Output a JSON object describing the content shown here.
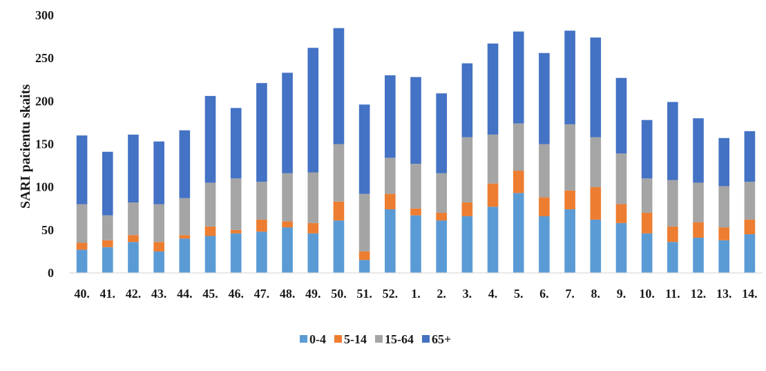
{
  "chart_data": {
    "type": "bar",
    "stacked": true,
    "title": "",
    "xlabel": "",
    "ylabel": "SARI pacientu skaits",
    "ylim": [
      0,
      300
    ],
    "yticks": [
      0,
      50,
      100,
      150,
      200,
      250,
      300
    ],
    "grid": false,
    "legend_position": "bottom",
    "categories": [
      "40.",
      "41.",
      "42.",
      "43.",
      "44.",
      "45.",
      "46.",
      "47.",
      "48.",
      "49.",
      "50.",
      "51.",
      "52.",
      "1.",
      "2.",
      "3.",
      "4.",
      "5.",
      "6.",
      "7.",
      "8.",
      "9.",
      "10.",
      "11.",
      "12.",
      "13.",
      "14."
    ],
    "series": [
      {
        "name": "0-4",
        "color": "#5b9bd5",
        "values": [
          27,
          30,
          36,
          25,
          40,
          43,
          46,
          48,
          53,
          46,
          61,
          15,
          74,
          67,
          61,
          66,
          77,
          93,
          66,
          74,
          62,
          58,
          46,
          36,
          41,
          38,
          45
        ]
      },
      {
        "name": "5-14",
        "color": "#ed7d31",
        "values": [
          8,
          8,
          8,
          11,
          4,
          11,
          4,
          14,
          7,
          12,
          22,
          10,
          18,
          8,
          9,
          16,
          27,
          26,
          22,
          22,
          38,
          22,
          24,
          18,
          18,
          15,
          17
        ]
      },
      {
        "name": "15-64",
        "color": "#a5a5a5",
        "values": [
          45,
          29,
          38,
          44,
          43,
          51,
          60,
          44,
          56,
          59,
          67,
          67,
          42,
          52,
          46,
          76,
          57,
          55,
          62,
          77,
          58,
          59,
          40,
          54,
          46,
          48,
          44
        ]
      },
      {
        "name": "65+",
        "color": "#4472c4",
        "values": [
          80,
          74,
          79,
          73,
          79,
          101,
          82,
          115,
          117,
          145,
          135,
          104,
          96,
          101,
          93,
          86,
          106,
          107,
          106,
          109,
          116,
          88,
          68,
          91,
          75,
          56,
          59
        ]
      }
    ]
  }
}
